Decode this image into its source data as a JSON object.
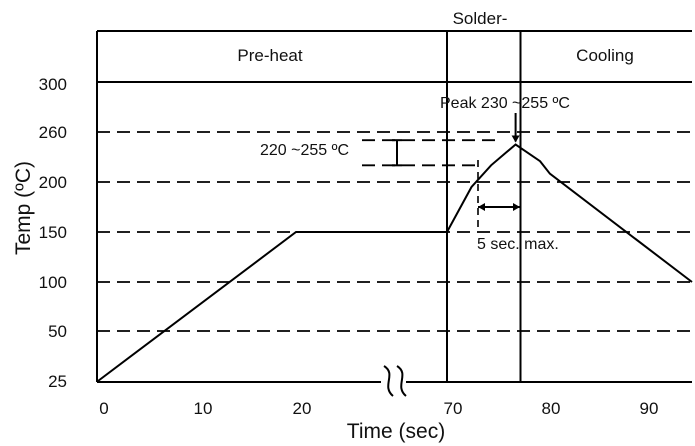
{
  "chart_data": {
    "type": "line",
    "title": "",
    "xlabel": "Time (sec)",
    "ylabel": "Temp (ºC)",
    "x_ticks": [
      "0",
      "10",
      "20",
      "70",
      "80",
      "90"
    ],
    "y_ticks": [
      "25",
      "50",
      "100",
      "150",
      "200",
      "220",
      "260",
      "300"
    ],
    "y_tick_labels": [
      "25",
      "50",
      "100",
      "150",
      "200",
      "",
      "260",
      "300"
    ],
    "axis_break_between": [
      20,
      70
    ],
    "bands": [
      {
        "label": "Pre-heat",
        "x_start": 0,
        "x_end": 70
      },
      {
        "label": "Solder-",
        "x_start": 70,
        "x_end": 77.5
      },
      {
        "label": "Cooling",
        "x_start": 77.5,
        "x_end": 95
      }
    ],
    "series": [
      {
        "points": [
          [
            0,
            25
          ],
          [
            20,
            150
          ],
          [
            70,
            150
          ],
          [
            72.5,
            195
          ],
          [
            74.5,
            220
          ],
          [
            76,
            235
          ],
          [
            77,
            245
          ],
          [
            78,
            237
          ],
          [
            79.5,
            225
          ],
          [
            80.5,
            210
          ],
          [
            95,
            100
          ]
        ]
      }
    ],
    "dashed_lines_y": [
      50,
      100,
      150,
      200,
      220,
      260
    ],
    "annotations": {
      "peak": {
        "text": "Peak 230 ~255 ºC",
        "x": 77,
        "y": 245
      },
      "reflow_range": {
        "text": "220 ~255 ºC",
        "y_low": 220,
        "y_high": 255
      },
      "time_above": {
        "text": "5 sec. max.",
        "x_start": 73,
        "x_end": 78,
        "y": 200
      }
    },
    "grid": false
  }
}
